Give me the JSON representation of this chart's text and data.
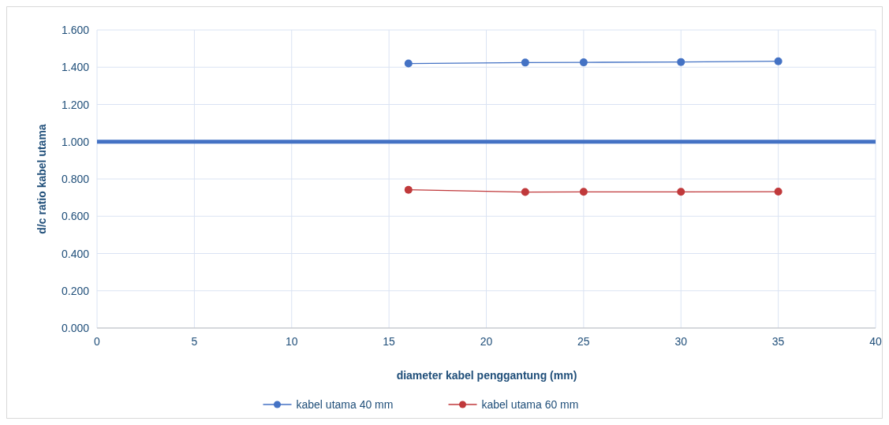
{
  "chart_data": {
    "type": "line",
    "xlabel": "diameter kabel penggantung (mm)",
    "ylabel": "d/c ratio kabel utama",
    "x": [
      16,
      22,
      25,
      30,
      35
    ],
    "series": [
      {
        "name": "kabel utama 40 mm",
        "color": "#4472c4",
        "values": [
          1.42,
          1.425,
          1.426,
          1.428,
          1.432
        ]
      },
      {
        "name": "kabel utama 60 mm",
        "color": "#c0393b",
        "values": [
          0.742,
          0.73,
          0.731,
          0.731,
          0.732
        ]
      }
    ],
    "xlim": [
      0,
      40
    ],
    "xticks": [
      0,
      5,
      10,
      15,
      20,
      25,
      30,
      35,
      40
    ],
    "ylim": [
      0,
      1.6
    ],
    "yticks": [
      {
        "value": 0,
        "label": "0.000"
      },
      {
        "value": 0.2,
        "label": "0.200"
      },
      {
        "value": 0.4,
        "label": "0.400"
      },
      {
        "value": 0.6,
        "label": "0.600"
      },
      {
        "value": 0.8,
        "label": "0.800"
      },
      {
        "value": 1.0,
        "label": "1.000"
      },
      {
        "value": 1.2,
        "label": "1.200"
      },
      {
        "value": 1.4,
        "label": "1.400"
      },
      {
        "value": 1.6,
        "label": "1.600"
      }
    ],
    "ref_lines": [
      {
        "axis": "y",
        "value": 1.0,
        "color": "#4472c4"
      }
    ],
    "grid": true,
    "legend": "bottom",
    "marker": "circle",
    "line_style": "solid"
  }
}
